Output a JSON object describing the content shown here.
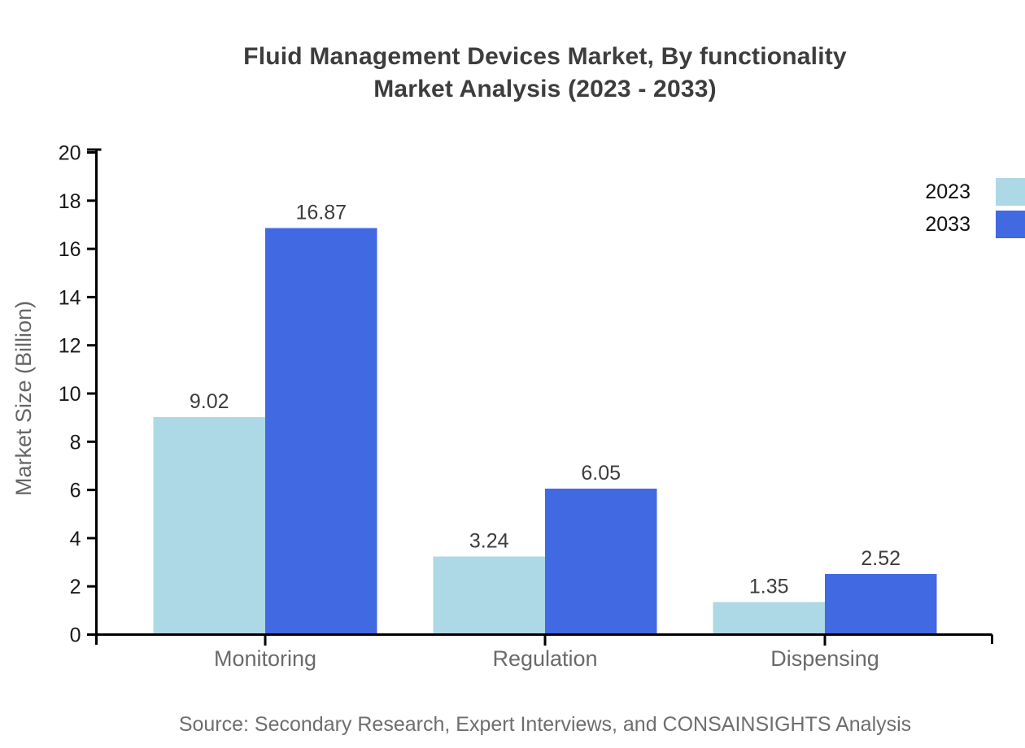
{
  "title": {
    "line1": "Fluid Management Devices Market, By functionality",
    "line2": "Market Analysis (2023 - 2033)"
  },
  "legend": {
    "items": [
      {
        "label": "2023",
        "color": "#ADD8E6"
      },
      {
        "label": "2033",
        "color": "#4169E1"
      }
    ]
  },
  "source": "Source: Secondary Research, Expert Interviews, and CONSAINSIGHTS Analysis",
  "chart_data": {
    "type": "bar",
    "categories": [
      "Monitoring",
      "Regulation",
      "Dispensing"
    ],
    "series": [
      {
        "name": "2023",
        "color": "#ADD8E6",
        "values": [
          9.02,
          3.24,
          1.35
        ]
      },
      {
        "name": "2033",
        "color": "#4169E1",
        "values": [
          16.87,
          6.05,
          2.52
        ]
      }
    ],
    "value_labels": [
      [
        "9.02",
        "3.24",
        "1.35"
      ],
      [
        "16.87",
        "6.05",
        "2.52"
      ]
    ],
    "ylabel": "Market Size (Billion)",
    "ylim": [
      0,
      20
    ],
    "yticks": [
      0,
      2,
      4,
      6,
      8,
      10,
      12,
      14,
      16,
      18,
      20
    ],
    "grid": false,
    "legend_position": "top-right",
    "axis_color": "#000000",
    "tick_label_color": "#1a1a1a",
    "category_label_color": "#6a6a6a",
    "value_label_color": "#3d3d3d",
    "ylabel_color": "#666666"
  }
}
